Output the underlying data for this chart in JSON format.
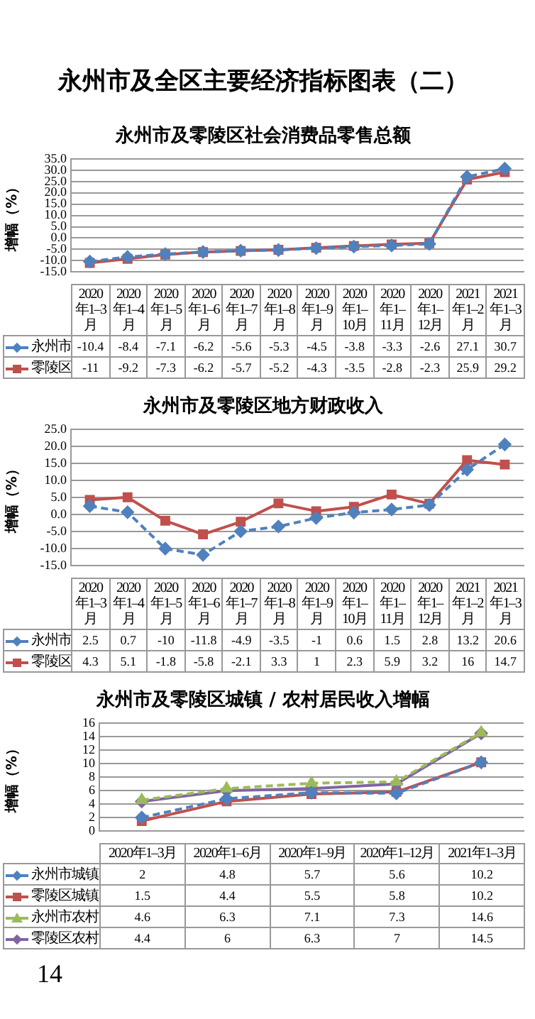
{
  "chart_data": [
    {
      "type": "line",
      "title": "永州市及全区主要经济指标图表（二）",
      "subtitle": "永州市及零陵区社会消费品零售总额",
      "ylabel": "增幅（%）",
      "categories": [
        "2020年1–3月",
        "2020年1–4月",
        "2020年1–5月",
        "2020年1–6月",
        "2020年1–7月",
        "2020年1–8月",
        "2020年1–9月",
        "2020年1–10月",
        "2020年1–11月",
        "2020年1–12月",
        "2021年1–2月",
        "2021年1–3月"
      ],
      "series": [
        {
          "name": "永州市",
          "color": "#4f81bd",
          "marker": "diamond",
          "line_style": "dashed",
          "values": [
            -10.4,
            -8.4,
            -7.1,
            -6.2,
            -5.6,
            -5.3,
            -4.5,
            -3.8,
            -3.3,
            -2.6,
            27.1,
            30.7
          ]
        },
        {
          "name": "零陵区",
          "color": "#c0504d",
          "marker": "square",
          "line_style": "solid",
          "values": [
            -11,
            -9.2,
            -7.3,
            -6.2,
            -5.7,
            -5.2,
            -4.3,
            -3.5,
            -2.8,
            -2.3,
            25.9,
            29.2
          ]
        }
      ],
      "ylim": [
        -15,
        35
      ],
      "yticks": [
        {
          "value": -15,
          "label": "-15.0"
        },
        {
          "value": -10,
          "label": "-10.0"
        },
        {
          "value": -5,
          "label": "-5.0"
        },
        {
          "value": 0,
          "label": "0.0"
        },
        {
          "value": 5,
          "label": "5.0"
        },
        {
          "value": 10,
          "label": "10.0"
        },
        {
          "value": 15,
          "label": "15.0"
        },
        {
          "value": 20,
          "label": "20.0"
        },
        {
          "value": 25,
          "label": "25.0"
        },
        {
          "value": 30,
          "label": "30.0"
        },
        {
          "value": 35,
          "label": "35.0"
        }
      ],
      "grid": "y",
      "legend": "bottom",
      "data_labels": true
    },
    {
      "type": "line",
      "title": "永州市及零陵区地方财政收入",
      "ylabel": "增幅（%）",
      "categories": [
        "2020年1–3月",
        "2020年1–4月",
        "2020年1–5月",
        "2020年1–6月",
        "2020年1–7月",
        "2020年1–8月",
        "2020年1–9月",
        "2020年1–10月",
        "2020年1–11月",
        "2020年1–12月",
        "2021年1–2月",
        "2021年1–3月"
      ],
      "series": [
        {
          "name": "永州市",
          "color": "#4f81bd",
          "marker": "diamond",
          "line_style": "dashed",
          "values": [
            2.5,
            0.7,
            -10,
            -11.8,
            -4.9,
            -3.5,
            -1,
            0.6,
            1.5,
            2.8,
            13.2,
            20.6
          ]
        },
        {
          "name": "零陵区",
          "color": "#c0504d",
          "marker": "square",
          "line_style": "solid",
          "values": [
            4.3,
            5.1,
            -1.8,
            -5.8,
            -2.1,
            3.3,
            1,
            2.3,
            5.9,
            3.2,
            16,
            14.7
          ]
        }
      ],
      "ylim": [
        -15,
        25
      ],
      "yticks": [
        {
          "value": -15,
          "label": "-15.0"
        },
        {
          "value": -10,
          "label": "-10.0"
        },
        {
          "value": -5,
          "label": "-5.0"
        },
        {
          "value": 0,
          "label": "0.0"
        },
        {
          "value": 5,
          "label": "5.0"
        },
        {
          "value": 10,
          "label": "10.0"
        },
        {
          "value": 15,
          "label": "15.0"
        },
        {
          "value": 20,
          "label": "20.0"
        },
        {
          "value": 25,
          "label": "25.0"
        }
      ],
      "grid": "y",
      "legend": "bottom",
      "data_labels": true
    },
    {
      "type": "line",
      "title": "永州市及零陵区城镇 / 农村居民收入增幅",
      "ylabel": "增幅（%）",
      "categories": [
        "2020年1–3月",
        "2020年1–6月",
        "2020年1–9月",
        "2020年1–12月",
        "2021年1–3月"
      ],
      "series": [
        {
          "name": "永州市城镇",
          "color": "#4f81bd",
          "marker": "diamond",
          "line_style": "dashed",
          "values": [
            2,
            4.8,
            5.7,
            5.6,
            10.2
          ]
        },
        {
          "name": "零陵区城镇",
          "color": "#c0504d",
          "marker": "square",
          "line_style": "solid",
          "values": [
            1.5,
            4.4,
            5.5,
            5.8,
            10.2
          ]
        },
        {
          "name": "永州市农村",
          "color": "#9bbb59",
          "marker": "triangle",
          "line_style": "dashed",
          "values": [
            4.6,
            6.3,
            7.1,
            7.3,
            14.6
          ]
        },
        {
          "name": "零陵区农村",
          "color": "#8064a2",
          "marker": "diamond",
          "line_style": "solid",
          "values": [
            4.4,
            6,
            6.3,
            7,
            14.5
          ]
        }
      ],
      "ylim": [
        0,
        16
      ],
      "yticks": [
        0,
        2,
        4,
        6,
        8,
        10,
        12,
        14,
        16
      ],
      "grid": "y",
      "legend": "bottom",
      "data_labels": true,
      "annotations": [
        "14"
      ]
    }
  ]
}
